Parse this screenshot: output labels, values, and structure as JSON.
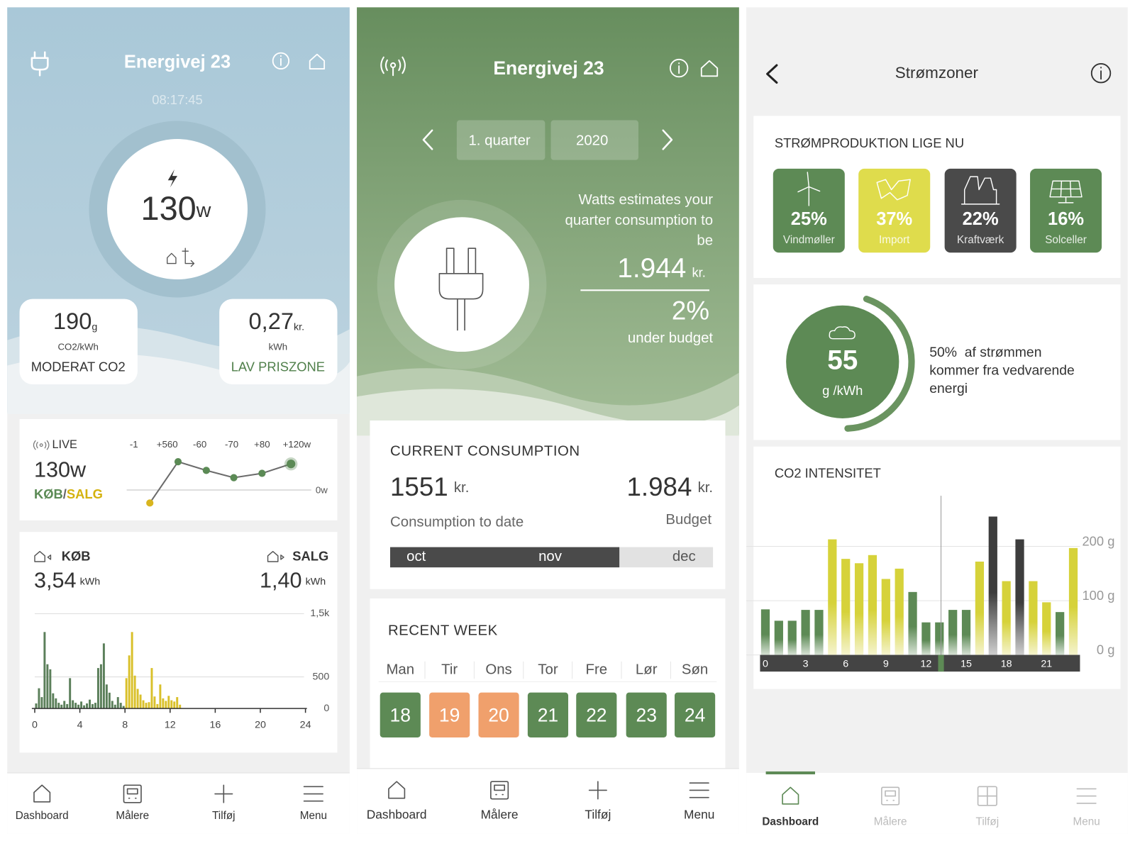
{
  "screens": [
    {
      "title": "Energivej 23",
      "time": "08:17:45",
      "power": {
        "value": "130",
        "unit": "w"
      },
      "co2": {
        "value": "190",
        "unit": "g",
        "per": "CO2/kWh",
        "label": "MODERAT CO2"
      },
      "price": {
        "value": "0,27",
        "unit": "kr.",
        "per": "kWh",
        "label": "LAV PRISZONE"
      },
      "live": {
        "label": "LIVE",
        "value": "130w",
        "buy": "KØB",
        "separator": "/",
        "sell": "SALG",
        "chart": {
          "type": "line",
          "categories": [
            "-1",
            "+560",
            "-60",
            "-70",
            "+80",
            "+120w"
          ],
          "values": [
            -18,
            39,
            27,
            17,
            23,
            36
          ],
          "colors": [
            "#d9b51e",
            "#5b8a55",
            "#5b8a55",
            "#5b8a55",
            "#5b8a55",
            "#5b8a55"
          ],
          "line_color": "#6b6b6b",
          "ylim": [
            -30,
            60
          ],
          "yticks": [
            {
              "value": 0,
              "label": "0w"
            }
          ]
        }
      },
      "usage": {
        "buy_label": "KØB",
        "buy_value": "3,54",
        "buy_unit": "kWh",
        "sell_label": "SALG",
        "sell_value": "1,40",
        "sell_unit": "kWh",
        "chart": {
          "type": "histogram",
          "series": [
            {
              "color": "#5b7f5a",
              "bins": [
                0,
                0.25,
                0.5,
                0.75,
                1,
                1.25,
                1.5,
                1.75,
                2,
                2.25,
                2.5,
                2.75,
                3,
                3.25,
                3.5,
                3.75,
                4,
                4.25,
                4.5,
                4.75,
                5,
                5.25,
                5.5,
                5.75,
                6,
                6.25,
                6.5,
                6.75,
                7,
                7.25,
                7.5,
                7.75,
                8
              ],
              "values": [
                80,
                320,
                180,
                1210,
                700,
                620,
                240,
                160,
                90,
                60,
                120,
                70,
                480,
                130,
                90,
                60,
                110,
                50,
                80,
                140,
                70,
                90,
                640,
                700,
                1030,
                380,
                250,
                120,
                60,
                180,
                90,
                40
              ]
            },
            {
              "color": "#d9c02a",
              "bins": [
                8,
                8.25,
                8.5,
                8.75,
                9,
                9.25,
                9.5,
                9.75,
                10,
                10.25,
                10.5,
                10.75,
                11,
                11.25,
                11.5,
                11.75,
                12,
                12.25,
                12.5,
                12.75,
                13
              ],
              "values": [
                480,
                840,
                1210,
                520,
                310,
                220,
                130,
                90,
                100,
                640,
                190,
                70,
                380,
                160,
                120,
                200,
                130,
                110,
                180,
                60
              ]
            }
          ],
          "xlim": [
            0,
            24
          ],
          "xticks": [
            0,
            4,
            8,
            12,
            16,
            20,
            24
          ],
          "ylim": [
            0,
            1500
          ],
          "yticks": [
            0,
            500,
            {
              "value": 1500,
              "label": "1,5k"
            }
          ],
          "grid": true
        }
      },
      "nav": [
        "Dashboard",
        "Målere",
        "Tilføj",
        "Menu"
      ]
    },
    {
      "title": "Energivej 23",
      "period": "1. quarter",
      "year": "2020",
      "estimate_lines": [
        "Watts estimates your",
        "quarter consumption to",
        "be"
      ],
      "estimate": {
        "value": "1.944",
        "unit": "kr."
      },
      "budget": {
        "value": "2%",
        "label": "under budget"
      },
      "current": {
        "title": "CURRENT CONSUMPTION",
        "spent": "1551",
        "spent_unit": "kr.",
        "budget": "1.984",
        "budget_unit": "kr.",
        "spent_label": "Consumption to date",
        "budget_label": "Budget",
        "months": [
          "oct",
          "nov",
          "dec"
        ],
        "progress_percent": 71
      },
      "week": {
        "title": "RECENT WEEK",
        "days": [
          {
            "day": "Man",
            "date": "18",
            "color": "#5d8a55"
          },
          {
            "day": "Tir",
            "date": "19",
            "color": "#f0a06c"
          },
          {
            "day": "Ons",
            "date": "20",
            "color": "#f0a06c"
          },
          {
            "day": "Tor",
            "date": "21",
            "color": "#5d8a55"
          },
          {
            "day": "Fre",
            "date": "22",
            "color": "#5d8a55"
          },
          {
            "day": "Lør",
            "date": "23",
            "color": "#5d8a55"
          },
          {
            "day": "Søn",
            "date": "24",
            "color": "#5d8a55"
          }
        ]
      },
      "nav": [
        "Dashboard",
        "Målere",
        "Tilføj",
        "Menu"
      ]
    },
    {
      "title": "Strømzoner",
      "production": {
        "title": "STRØMPRODUKTION LIGE NU",
        "sources": [
          {
            "share": "25%",
            "label": "Vindmøller",
            "color": "#5d8a55"
          },
          {
            "share": "37%",
            "label": "Import",
            "color": "#dfdc4c"
          },
          {
            "share": "22%",
            "label": "Kraftværk",
            "color": "#4a4a4a"
          },
          {
            "share": "16%",
            "label": "Solceller",
            "color": "#5d8a55"
          }
        ]
      },
      "intensity_now": {
        "value": "55",
        "unit": "g /kWh",
        "text_lines": [
          "50%  af strømmen",
          "kommer fra vedvarende",
          "energi"
        ]
      },
      "co2": {
        "title": "CO2 INTENSITET",
        "chart": {
          "type": "bar",
          "x": [
            0,
            1,
            2,
            3,
            4,
            5,
            6,
            7,
            8,
            9,
            10,
            11,
            12,
            13,
            14,
            15,
            16,
            17,
            18,
            19,
            20,
            21,
            22,
            23
          ],
          "values": [
            84,
            63,
            63,
            83,
            83,
            213,
            177,
            169,
            184,
            140,
            159,
            116,
            60,
            60,
            83,
            83,
            172,
            255,
            136,
            213,
            136,
            97,
            79,
            197
          ],
          "colors": [
            "#5d8a55",
            "#5d8a55",
            "#5d8a55",
            "#5d8a55",
            "#5d8a55",
            "#d6d23a",
            "#d6d23a",
            "#d6d23a",
            "#d6d23a",
            "#d6d23a",
            "#d6d23a",
            "#5d8a55",
            "#5d8a55",
            "#5d8a55",
            "#5d8a55",
            "#5d8a55",
            "#d6d23a",
            "#3d3d3d",
            "#d6d23a",
            "#3d3d3d",
            "#d6d23a",
            "#d6d23a",
            "#5d8a55",
            "#d6d23a"
          ],
          "xlim": [
            -0.4,
            23.5
          ],
          "xticks": [
            0,
            3,
            6,
            9,
            12,
            15,
            18,
            21
          ],
          "ylim": [
            0,
            290
          ],
          "yticks": [
            {
              "value": 0,
              "label": "0 g"
            },
            {
              "value": 100,
              "label": "100 g"
            },
            {
              "value": 200,
              "label": "200 g"
            }
          ],
          "grid": true
        }
      },
      "nav": [
        "Dashboard",
        "Målere",
        "Tilføj",
        "Menu"
      ]
    }
  ]
}
